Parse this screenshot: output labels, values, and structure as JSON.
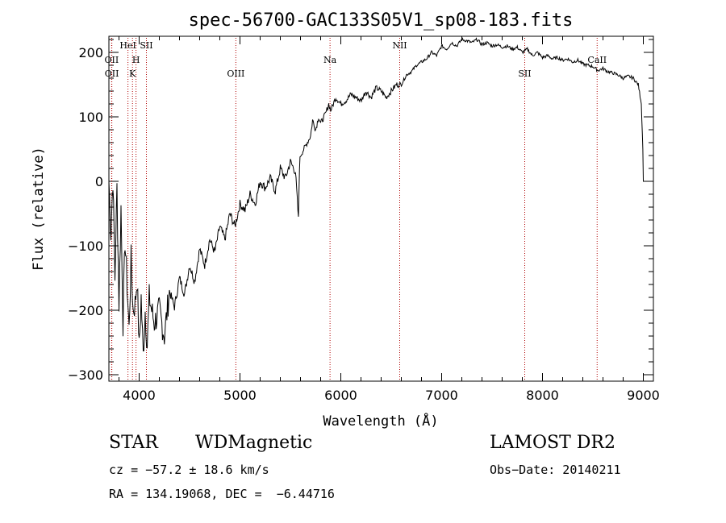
{
  "chart_data": {
    "type": "line",
    "title": "spec-56700-GAC133S05V1_sp08-183.fits",
    "xlabel": "Wavelength (Å)",
    "ylabel": "Flux (relative)",
    "xlim": [
      3700,
      9100
    ],
    "ylim": [
      -310,
      225
    ],
    "xticks": [
      4000,
      5000,
      6000,
      7000,
      8000,
      9000
    ],
    "xticklabels": [
      "4000",
      "5000",
      "6000",
      "7000",
      "8000",
      "9000"
    ],
    "yticks": [
      -300,
      -200,
      -100,
      0,
      100,
      200
    ],
    "yticklabels": [
      "−300",
      "−200",
      "−100",
      "0",
      "100",
      "200"
    ],
    "series": [
      {
        "name": "spectrum",
        "x": [
          3700,
          3720,
          3740,
          3760,
          3780,
          3800,
          3820,
          3840,
          3860,
          3880,
          3900,
          3920,
          3940,
          3960,
          3980,
          4000,
          4020,
          4040,
          4060,
          4080,
          4100,
          4150,
          4200,
          4250,
          4300,
          4350,
          4400,
          4450,
          4500,
          4550,
          4600,
          4650,
          4700,
          4750,
          4800,
          4850,
          4900,
          4950,
          5000,
          5050,
          5100,
          5150,
          5200,
          5250,
          5300,
          5350,
          5400,
          5450,
          5500,
          5550,
          5580,
          5590,
          5600,
          5650,
          5700,
          5720,
          5750,
          5780,
          5800,
          5850,
          5880,
          5900,
          5950,
          6000,
          6050,
          6100,
          6150,
          6200,
          6250,
          6300,
          6350,
          6400,
          6450,
          6500,
          6550,
          6600,
          6650,
          6700,
          6750,
          6800,
          6850,
          6900,
          6950,
          7000,
          7050,
          7100,
          7150,
          7200,
          7250,
          7300,
          7350,
          7400,
          7450,
          7500,
          7550,
          7600,
          7650,
          7700,
          7750,
          7800,
          7850,
          7900,
          7950,
          8000,
          8050,
          8100,
          8150,
          8200,
          8250,
          8300,
          8350,
          8400,
          8450,
          8500,
          8550,
          8600,
          8650,
          8700,
          8750,
          8800,
          8850,
          8900,
          8950,
          8980,
          8995,
          9000,
          9005
        ],
        "y": [
          0,
          -80,
          5,
          -150,
          -10,
          -190,
          -40,
          -220,
          -90,
          -160,
          -230,
          -120,
          -200,
          -190,
          -150,
          -260,
          -180,
          -270,
          -200,
          -255,
          -180,
          -220,
          -200,
          -240,
          -170,
          -195,
          -150,
          -175,
          -130,
          -155,
          -105,
          -130,
          -90,
          -110,
          -70,
          -90,
          -50,
          -70,
          -35,
          -45,
          -20,
          -35,
          0,
          -10,
          5,
          -15,
          20,
          5,
          30,
          15,
          -60,
          25,
          40,
          55,
          70,
          95,
          80,
          100,
          90,
          105,
          120,
          110,
          130,
          120,
          125,
          135,
          130,
          125,
          140,
          130,
          145,
          140,
          130,
          140,
          150,
          150,
          165,
          170,
          180,
          185,
          190,
          200,
          195,
          210,
          205,
          215,
          210,
          220,
          218,
          215,
          220,
          212,
          215,
          210,
          212,
          208,
          210,
          205,
          208,
          200,
          205,
          195,
          200,
          192,
          195,
          190,
          192,
          188,
          190,
          185,
          188,
          182,
          180,
          178,
          172,
          175,
          170,
          168,
          165,
          160,
          163,
          160,
          150,
          120,
          50,
          0,
          0
        ]
      }
    ],
    "lines": [
      {
        "label": "OII",
        "x": 3727,
        "row": "top"
      },
      {
        "label": "OII",
        "x": 3729,
        "row": "mid"
      },
      {
        "label": "HeI",
        "x": 3889,
        "row": "top2"
      },
      {
        "label": "K",
        "x": 3934,
        "row": "mid"
      },
      {
        "label": "H",
        "x": 3969,
        "row": "top"
      },
      {
        "label": "SII",
        "x": 4072,
        "row": "top2"
      },
      {
        "label": "OIII",
        "x": 4959,
        "row": "mid"
      },
      {
        "label": "Na",
        "x": 5893,
        "row": "top"
      },
      {
        "label": "NII",
        "x": 6584,
        "row": "top2"
      },
      {
        "label": "SII",
        "x": 7824,
        "row": "mid"
      },
      {
        "label": "CaII",
        "x": 8542,
        "row": "top"
      }
    ]
  },
  "footer": {
    "object_class": "STAR",
    "subclass": "WDMagnetic",
    "survey": "LAMOST DR2",
    "cz": "cz = −57.2 ± 18.6 km/s",
    "obs_date": "Obs−Date: 20140211",
    "coords": "RA = 134.19068, DEC =  −6.44716"
  }
}
